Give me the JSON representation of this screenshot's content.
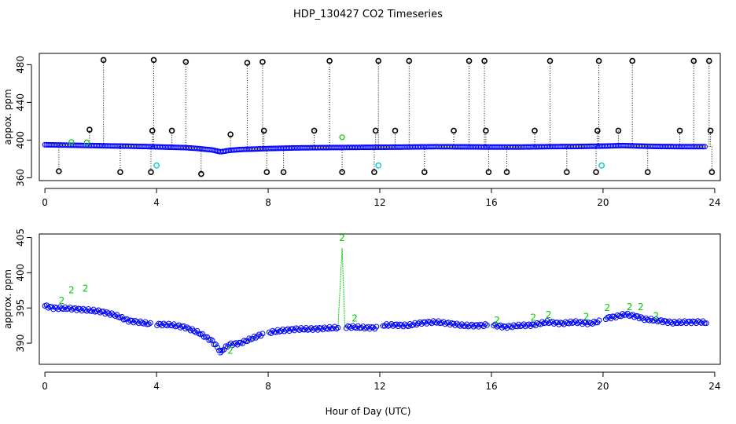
{
  "figure": {
    "title": "HDP_130427  CO2 Timeseries",
    "xlabel": "Hour of Day (UTC)"
  },
  "colors": {
    "black": "#000000",
    "blue": "#0000ff",
    "green": "#00cc00",
    "cyan": "#00cccc"
  },
  "chart_data": [
    {
      "type": "scatter",
      "panel": "top",
      "ylabel": "appox. ppm",
      "xlim": [
        -0.2,
        24.2
      ],
      "ylim": [
        357,
        492
      ],
      "xticks": [
        0,
        4,
        8,
        12,
        16,
        20,
        24
      ],
      "yticks": [
        360,
        400,
        440,
        480
      ],
      "baseline": [
        [
          0,
          395
        ],
        [
          0.5,
          394.8
        ],
        [
          1,
          394.5
        ],
        [
          2,
          394
        ],
        [
          3,
          393.5
        ],
        [
          3.8,
          393
        ],
        [
          4,
          392.8
        ],
        [
          5,
          392
        ],
        [
          5.5,
          391
        ],
        [
          6,
          389.5
        ],
        [
          6.3,
          387.5
        ],
        [
          6.6,
          389
        ],
        [
          7,
          390
        ],
        [
          8,
          391
        ],
        [
          9,
          391.7
        ],
        [
          10,
          392
        ],
        [
          11,
          392.2
        ],
        [
          12,
          392.4
        ],
        [
          13,
          392.6
        ],
        [
          14,
          393
        ],
        [
          15,
          392.8
        ],
        [
          16,
          392.6
        ],
        [
          17,
          392.6
        ],
        [
          18,
          393
        ],
        [
          19,
          393.2
        ],
        [
          20,
          393.6
        ],
        [
          20.7,
          394.2
        ],
        [
          21.5,
          393.5
        ],
        [
          22,
          393.2
        ],
        [
          23,
          393
        ],
        [
          23.7,
          393
        ]
      ],
      "high_spikes": [
        {
          "x": 2.1,
          "y": 485
        },
        {
          "x": 3.9,
          "y": 485
        },
        {
          "x": 5.05,
          "y": 483
        },
        {
          "x": 7.25,
          "y": 482
        },
        {
          "x": 7.8,
          "y": 483
        },
        {
          "x": 10.2,
          "y": 484
        },
        {
          "x": 11.95,
          "y": 484
        },
        {
          "x": 13.05,
          "y": 484
        },
        {
          "x": 15.2,
          "y": 484
        },
        {
          "x": 15.75,
          "y": 484
        },
        {
          "x": 18.1,
          "y": 484
        },
        {
          "x": 19.85,
          "y": 484
        },
        {
          "x": 21.05,
          "y": 484
        },
        {
          "x": 23.25,
          "y": 484
        },
        {
          "x": 23.8,
          "y": 484
        }
      ],
      "mid_spikes": [
        {
          "x": 1.6,
          "y": 411
        },
        {
          "x": 3.85,
          "y": 410
        },
        {
          "x": 4.55,
          "y": 410
        },
        {
          "x": 6.65,
          "y": 406
        },
        {
          "x": 7.85,
          "y": 410
        },
        {
          "x": 9.65,
          "y": 410
        },
        {
          "x": 11.85,
          "y": 410
        },
        {
          "x": 12.55,
          "y": 410
        },
        {
          "x": 14.65,
          "y": 410
        },
        {
          "x": 15.8,
          "y": 410
        },
        {
          "x": 17.55,
          "y": 410
        },
        {
          "x": 19.8,
          "y": 410
        },
        {
          "x": 20.55,
          "y": 410
        },
        {
          "x": 22.75,
          "y": 410
        },
        {
          "x": 23.85,
          "y": 410
        }
      ],
      "low_spikes": [
        {
          "x": 0.5,
          "y": 367
        },
        {
          "x": 2.7,
          "y": 366
        },
        {
          "x": 3.8,
          "y": 366
        },
        {
          "x": 5.6,
          "y": 364
        },
        {
          "x": 7.95,
          "y": 366
        },
        {
          "x": 8.55,
          "y": 366
        },
        {
          "x": 10.65,
          "y": 366
        },
        {
          "x": 11.8,
          "y": 366
        },
        {
          "x": 13.6,
          "y": 366
        },
        {
          "x": 15.9,
          "y": 366
        },
        {
          "x": 16.55,
          "y": 366
        },
        {
          "x": 18.7,
          "y": 366
        },
        {
          "x": 19.75,
          "y": 366
        },
        {
          "x": 21.6,
          "y": 366
        },
        {
          "x": 23.9,
          "y": 366
        }
      ],
      "green_points": [
        {
          "x": 0.95,
          "y": 398
        },
        {
          "x": 1.5,
          "y": 397.5
        },
        {
          "x": 10.65,
          "y": 403
        }
      ],
      "cyan_points": [
        {
          "x": 4.0,
          "y": 373
        },
        {
          "x": 11.95,
          "y": 373
        },
        {
          "x": 19.95,
          "y": 373
        }
      ]
    },
    {
      "type": "scatter",
      "panel": "bottom",
      "ylabel": "approx. ppm",
      "xlim": [
        -0.2,
        24.2
      ],
      "ylim": [
        387,
        405.5
      ],
      "xticks": [
        0,
        4,
        8,
        12,
        16,
        20,
        24
      ],
      "yticks": [
        390,
        395,
        400,
        405
      ],
      "series_line": [
        [
          0,
          395.3
        ],
        [
          0.3,
          395
        ],
        [
          1,
          394.9
        ],
        [
          1.5,
          394.7
        ],
        [
          2,
          394.5
        ],
        [
          2.5,
          394
        ],
        [
          3,
          393.2
        ],
        [
          3.5,
          392.9
        ],
        [
          3.8,
          392.7
        ],
        [
          4,
          392.7
        ],
        [
          4.5,
          392.6
        ],
        [
          5,
          392.3
        ],
        [
          5.5,
          391.5
        ],
        [
          6,
          390.3
        ],
        [
          6.3,
          388.8
        ],
        [
          6.6,
          389.8
        ],
        [
          7,
          390
        ],
        [
          7.5,
          390.8
        ],
        [
          7.8,
          391.3
        ],
        [
          8,
          391.5
        ],
        [
          8.5,
          391.8
        ],
        [
          9,
          392
        ],
        [
          9.5,
          392
        ],
        [
          10,
          392.1
        ],
        [
          10.5,
          392.2
        ],
        [
          10.65,
          403.5
        ],
        [
          10.75,
          392.3
        ],
        [
          11,
          392.3
        ],
        [
          11.5,
          392.2
        ],
        [
          11.9,
          392.2
        ],
        [
          12,
          392.5
        ],
        [
          12.5,
          392.6
        ],
        [
          13,
          392.5
        ],
        [
          13.5,
          392.9
        ],
        [
          14,
          393
        ],
        [
          14.5,
          392.8
        ],
        [
          15,
          392.5
        ],
        [
          15.5,
          392.5
        ],
        [
          15.9,
          392.6
        ],
        [
          16,
          392.6
        ],
        [
          16.5,
          392.3
        ],
        [
          17,
          392.5
        ],
        [
          17.5,
          392.6
        ],
        [
          18,
          393
        ],
        [
          18.5,
          392.8
        ],
        [
          19,
          393
        ],
        [
          19.5,
          392.8
        ],
        [
          19.9,
          393.1
        ],
        [
          20,
          393.5
        ],
        [
          20.5,
          393.8
        ],
        [
          20.8,
          394.1
        ],
        [
          21.2,
          393.8
        ],
        [
          21.5,
          393.4
        ],
        [
          22,
          393.2
        ],
        [
          22.5,
          392.9
        ],
        [
          23,
          393
        ],
        [
          23.5,
          393
        ],
        [
          23.7,
          392.9
        ]
      ],
      "gaps_after": [
        3.8,
        7.8,
        11.9,
        15.9,
        19.9
      ],
      "labels_2": [
        {
          "x": 0.95,
          "y": 397.1
        },
        {
          "x": 1.45,
          "y": 397.3
        },
        {
          "x": 10.65,
          "y": 404.5
        },
        {
          "x": 11.1,
          "y": 393.1
        },
        {
          "x": 6.65,
          "y": 388.5
        },
        {
          "x": 0.6,
          "y": 395.6
        },
        {
          "x": 17.5,
          "y": 393.2
        },
        {
          "x": 18.05,
          "y": 393.6
        },
        {
          "x": 20.15,
          "y": 394.6
        },
        {
          "x": 20.95,
          "y": 394.7
        },
        {
          "x": 21.35,
          "y": 394.7
        },
        {
          "x": 16.2,
          "y": 392.8
        },
        {
          "x": 19.4,
          "y": 393.3
        },
        {
          "x": 21.9,
          "y": 393.4
        }
      ],
      "labels_3": [
        {
          "x": 6.3,
          "y": 388.3
        }
      ]
    }
  ]
}
